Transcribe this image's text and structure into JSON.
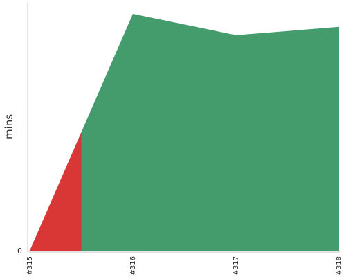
{
  "chart_data": {
    "type": "area",
    "x": [
      "#315",
      "#316",
      "#317",
      "#318"
    ],
    "ylabel": "mins",
    "y_tick_labels": [
      "0"
    ],
    "ylim": [
      0,
      100
    ],
    "series": [
      {
        "values": [
          0,
          100,
          91,
          94.5
        ],
        "color": "#449c6d"
      }
    ],
    "failed_segment": {
      "from": "#315",
      "to_fraction": 0.5,
      "color": "#d93636"
    },
    "grid": false,
    "legend": "none"
  }
}
